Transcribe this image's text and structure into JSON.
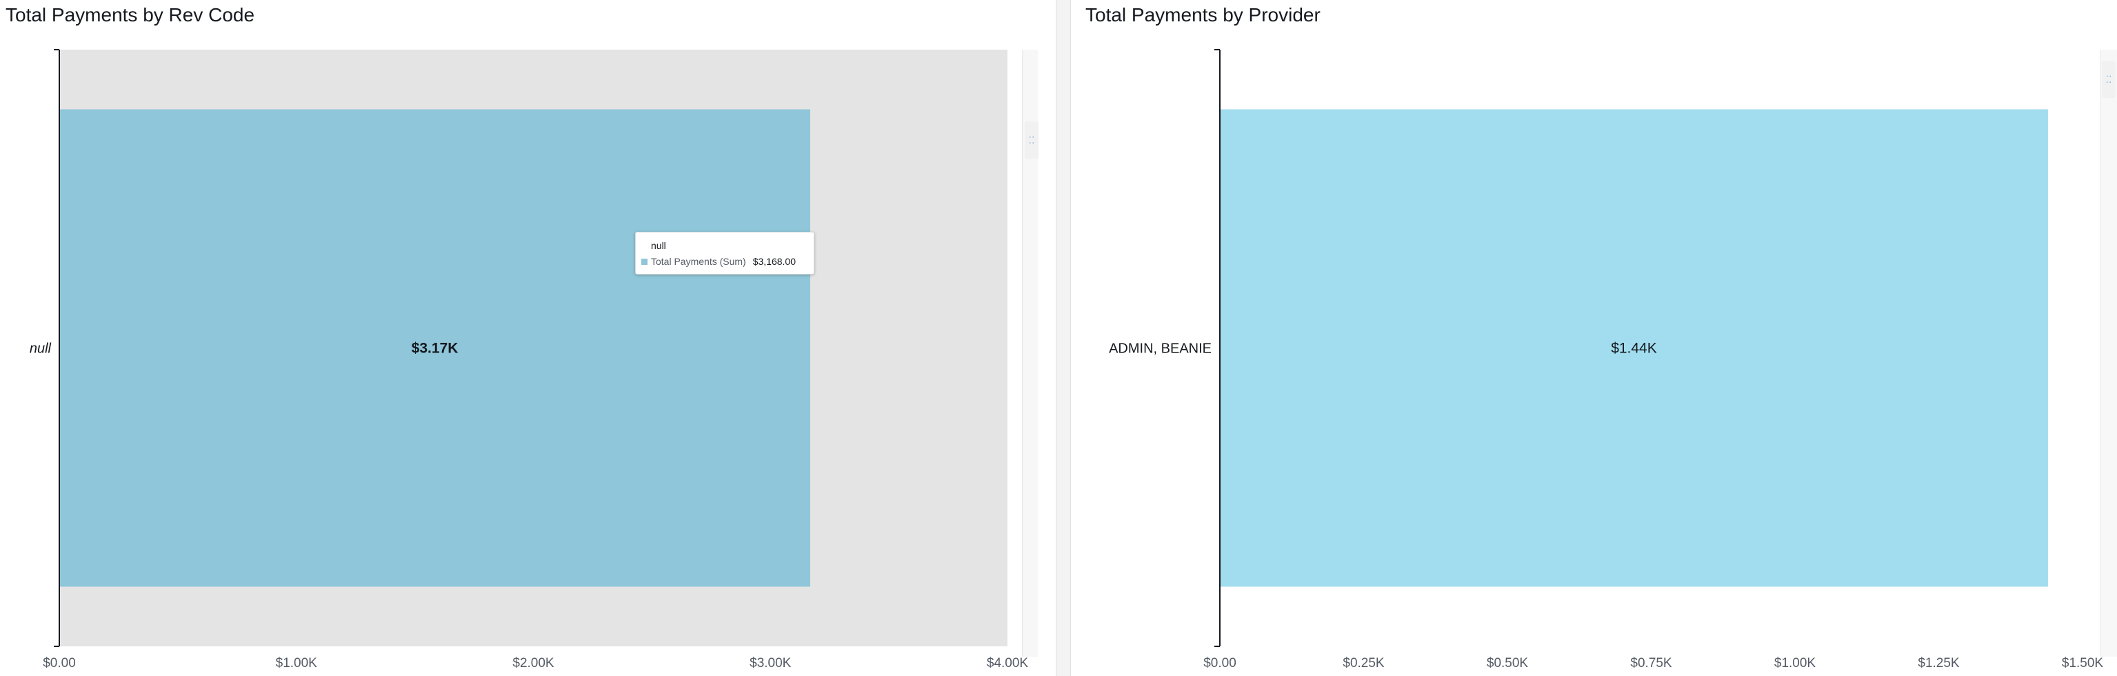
{
  "panels": {
    "rev": {
      "title": "Total Payments by Rev Code",
      "tooltip": {
        "title": "null",
        "measure": "Total Payments (Sum)",
        "value": "$3,168.00"
      }
    },
    "prov": {
      "title": "Total Payments by Provider"
    }
  },
  "chart_data": [
    {
      "type": "bar",
      "orientation": "horizontal",
      "title": "Total Payments by Rev Code",
      "categories": [
        "null"
      ],
      "values": [
        3168
      ],
      "data_labels": [
        "$3.17K"
      ],
      "xlim": [
        0,
        4000
      ],
      "x_ticks": [
        0,
        1000,
        2000,
        3000,
        4000
      ],
      "x_tick_labels": [
        "$0.00",
        "$1.00K",
        "$2.00K",
        "$3.00K",
        "$4.00K"
      ],
      "bar_color": "#8fc6d9",
      "plot_background": "#e4e4e4",
      "grid": false
    },
    {
      "type": "bar",
      "orientation": "horizontal",
      "title": "Total Payments by Provider",
      "categories": [
        "ADMIN, BEANIE"
      ],
      "values": [
        1440
      ],
      "data_labels": [
        "$1.44K"
      ],
      "xlim": [
        0,
        1500
      ],
      "x_ticks": [
        0,
        250,
        500,
        750,
        1000,
        1250,
        1500
      ],
      "x_tick_labels": [
        "$0.00",
        "$0.25K",
        "$0.50K",
        "$0.75K",
        "$1.00K",
        "$1.25K",
        "$1.50K"
      ],
      "bar_color": "#a1ddee",
      "plot_background": "#ffffff",
      "grid": false
    }
  ],
  "icons": {
    "drag_handle": "⁚⁚"
  }
}
